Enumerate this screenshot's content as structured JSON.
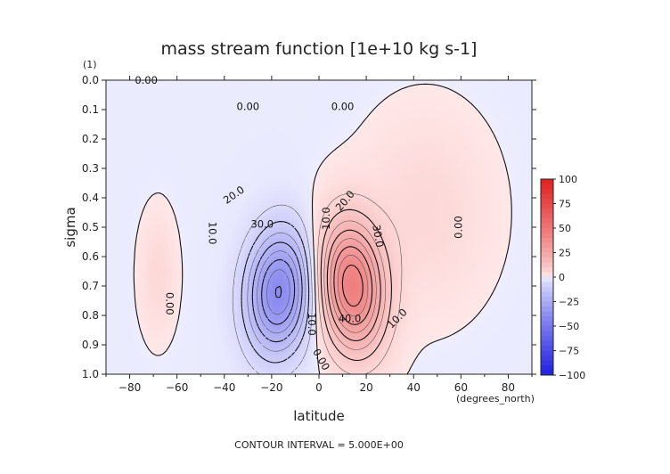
{
  "chart_data": {
    "type": "contour",
    "title": "mass stream function [1e+10 kg s-1]",
    "xlabel": "latitude",
    "x_units": "(degrees_north)",
    "ylabel": "sigma",
    "y_units": "(1)",
    "xlim": [
      -90,
      90
    ],
    "ylim": [
      1.0,
      0.0
    ],
    "x_ticks": [
      -80,
      -60,
      -40,
      -20,
      0,
      20,
      40,
      60,
      80
    ],
    "x_tick_labels": [
      "−80",
      "−60",
      "−40",
      "−20",
      "0",
      "20",
      "40",
      "60",
      "80"
    ],
    "y_ticks": [
      0.0,
      0.1,
      0.2,
      0.3,
      0.4,
      0.5,
      0.6,
      0.7,
      0.8,
      0.9,
      1.0
    ],
    "y_tick_labels": [
      "0.0",
      "0.1",
      "0.2",
      "0.3",
      "0.4",
      "0.5",
      "0.6",
      "0.7",
      "0.8",
      "0.9",
      "1.0"
    ],
    "footer": "CONTOUR INTERVAL = 5.000E+00",
    "colorbar": {
      "ticks": [
        100,
        75,
        50,
        25,
        0,
        -25,
        -50,
        -75,
        -100
      ],
      "tick_labels": [
        "100",
        "75",
        "50",
        "25",
        "0",
        "−25",
        "−50",
        "−75",
        "−100"
      ],
      "min_color": "#2020e0",
      "max_color": "#e02020"
    },
    "cells": [
      {
        "name": "southern-cell",
        "center_lat": -17,
        "center_sigma": 0.72,
        "peak": -40,
        "width_lat": 13,
        "width_sigma": 0.2,
        "tilt": -0.15
      },
      {
        "name": "northern-cell",
        "center_lat": 14,
        "center_sigma": 0.7,
        "peak": 45,
        "width_lat": 13,
        "width_sigma": 0.21,
        "tilt": 0.2
      },
      {
        "name": "southern-ferrel",
        "center_lat": -68,
        "center_sigma": 0.66,
        "peak": 5,
        "width_lat": 7,
        "width_sigma": 0.19,
        "tilt": 0
      },
      {
        "name": "northern-background",
        "center_lat": 45,
        "center_sigma": 0.45,
        "peak": 5,
        "width_lat": 25,
        "width_sigma": 0.3,
        "tilt": 0
      }
    ],
    "contour_labels": [
      {
        "text": "0.00",
        "lat": -73,
        "sigma": 0.0
      },
      {
        "text": "0.00",
        "lat": -30,
        "sigma": 0.09
      },
      {
        "text": "0.00",
        "lat": 10,
        "sigma": 0.09
      },
      {
        "text": "20.0",
        "lat": -36,
        "sigma": 0.39,
        "rotate": -35
      },
      {
        "text": "10.0",
        "lat": -45,
        "sigma": 0.52,
        "rotate": 90
      },
      {
        "text": "30.0",
        "lat": -24,
        "sigma": 0.49
      },
      {
        "text": "10.0",
        "lat": 3,
        "sigma": 0.47,
        "rotate": -90
      },
      {
        "text": "20.0",
        "lat": 11,
        "sigma": 0.41,
        "rotate": -50
      },
      {
        "text": "30.0",
        "lat": 25,
        "sigma": 0.53,
        "rotate": 80
      },
      {
        "text": "40.0",
        "lat": 13,
        "sigma": 0.81
      },
      {
        "text": "10.0",
        "lat": 33,
        "sigma": 0.81,
        "rotate": -45
      },
      {
        "text": "0.00",
        "lat": -63,
        "sigma": 0.76,
        "rotate": 90
      },
      {
        "text": "0.00",
        "lat": 59,
        "sigma": 0.5,
        "rotate": -90
      },
      {
        "text": "10.0",
        "lat": -3,
        "sigma": 0.83,
        "rotate": 90
      },
      {
        "text": "0.00",
        "lat": 1,
        "sigma": 0.95,
        "rotate": 60
      }
    ]
  }
}
